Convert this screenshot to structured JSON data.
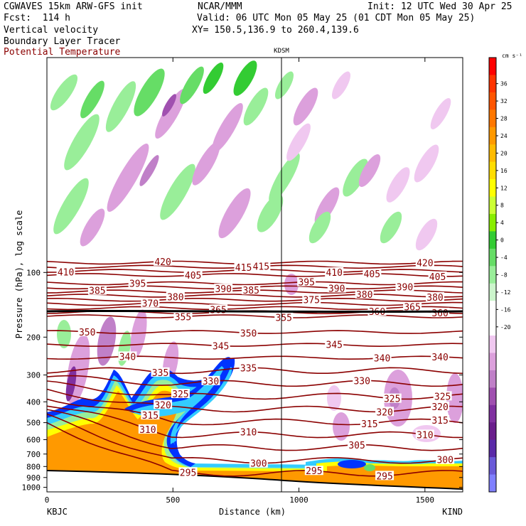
{
  "header": {
    "model": "CGWAVES 15km ARW-GFS init",
    "fcst": "Fcst:  114 h",
    "org": "NCAR/MMM",
    "init": "Init: 12 UTC Wed 30 Apr 25",
    "valid": "Valid: 06 UTC Mon 05 May 25 (01 CDT Mon 05 May 25)",
    "xy": "XY= 150.5,136.9 to 260.4,139.6",
    "field1": "Vertical velocity",
    "field2": "Boundary Layer Tracer",
    "field3": "Potential Temperature",
    "marker": "KDSM"
  },
  "colors": {
    "theta": "#8b0000",
    "text_red": "#8b0000"
  },
  "chart_data": {
    "type": "heatmap",
    "xlabel": "Distance (km)",
    "ylabel": "Pressure (hPa), log scale",
    "x_ticks": [
      0,
      500,
      1000,
      1500
    ],
    "xlim": [
      0,
      1650
    ],
    "y_ticks": [
      100,
      200,
      300,
      400,
      500,
      600,
      700,
      800,
      900,
      1000
    ],
    "ylim": [
      1050,
      10
    ],
    "left_station": "KBJC",
    "right_station": "KIND",
    "marker_station": "KDSM",
    "marker_x": 930,
    "colorbar": {
      "unit": "cm s⁻¹",
      "labels": [
        36,
        32,
        28,
        24,
        20,
        16,
        12,
        8,
        4,
        0,
        -4,
        -8,
        -12,
        -16,
        -20
      ],
      "colors": [
        "#ff0000",
        "#ff3300",
        "#ff5500",
        "#ff7700",
        "#ff9900",
        "#ffbb00",
        "#ffdd00",
        "#ffff00",
        "#ccff33",
        "#88ee00",
        "#33cc33",
        "#66dd66",
        "#99ee99",
        "#ccf5cc",
        "#ffffff",
        "#ffffff",
        "#f0c8f0",
        "#dca0dc",
        "#c080c8",
        "#a050b0",
        "#8030a0",
        "#6a1e8c",
        "#5a2aa8",
        "#6a5ad8",
        "#8080ff"
      ]
    },
    "theta_levels": [
      {
        "value": 420,
        "labels": [
          [
            460,
            420
          ],
          [
            1500,
            420
          ]
        ]
      },
      {
        "value": 415,
        "labels": [
          [
            780,
            415
          ],
          [
            850,
            415
          ]
        ]
      },
      {
        "value": 410,
        "labels": [
          [
            75,
            410
          ],
          [
            1140,
            410
          ]
        ]
      },
      {
        "value": 405,
        "labels": [
          [
            580,
            405
          ],
          [
            1290,
            405
          ],
          [
            1550,
            405
          ]
        ]
      },
      {
        "value": 395,
        "labels": [
          [
            360,
            395
          ],
          [
            1030,
            395
          ]
        ]
      },
      {
        "value": 390,
        "labels": [
          [
            700,
            390
          ],
          [
            1150,
            390
          ],
          [
            1420,
            390
          ]
        ]
      },
      {
        "value": 385,
        "labels": [
          [
            200,
            385
          ],
          [
            810,
            385
          ]
        ]
      },
      {
        "value": 380,
        "labels": [
          [
            510,
            380
          ],
          [
            1260,
            380
          ],
          [
            1540,
            380
          ]
        ]
      },
      {
        "value": 375,
        "labels": [
          [
            1050,
            375
          ]
        ]
      },
      {
        "value": 370,
        "labels": [
          [
            410,
            370
          ]
        ]
      },
      {
        "value": 365,
        "labels": [
          [
            680,
            365
          ],
          [
            1450,
            365
          ]
        ]
      },
      {
        "value": 360,
        "labels": [
          [
            1310,
            360
          ],
          [
            1560,
            360
          ]
        ]
      },
      {
        "value": 355,
        "labels": [
          [
            540,
            355
          ],
          [
            940,
            355
          ]
        ]
      },
      {
        "value": 350,
        "labels": [
          [
            160,
            350
          ],
          [
            800,
            350
          ]
        ]
      },
      {
        "value": 345,
        "labels": [
          [
            690,
            345
          ],
          [
            1140,
            345
          ]
        ]
      },
      {
        "value": 340,
        "labels": [
          [
            320,
            340
          ],
          [
            1330,
            340
          ],
          [
            1560,
            340
          ]
        ]
      },
      {
        "value": 335,
        "labels": [
          [
            450,
            335
          ],
          [
            800,
            335
          ]
        ]
      },
      {
        "value": 330,
        "labels": [
          [
            650,
            330
          ],
          [
            1250,
            330
          ]
        ]
      },
      {
        "value": 325,
        "labels": [
          [
            530,
            325
          ],
          [
            1370,
            325
          ],
          [
            1570,
            325
          ]
        ]
      },
      {
        "value": 320,
        "labels": [
          [
            460,
            320
          ],
          [
            1340,
            320
          ],
          [
            1560,
            320
          ]
        ]
      },
      {
        "value": 315,
        "labels": [
          [
            410,
            315
          ],
          [
            1280,
            315
          ],
          [
            1560,
            315
          ]
        ]
      },
      {
        "value": 310,
        "labels": [
          [
            400,
            310
          ],
          [
            800,
            310
          ],
          [
            1500,
            310
          ]
        ]
      },
      {
        "value": 305,
        "labels": [
          [
            1230,
            305
          ]
        ]
      },
      {
        "value": 300,
        "labels": [
          [
            840,
            300
          ],
          [
            1580,
            300
          ]
        ]
      },
      {
        "value": 295,
        "labels": [
          [
            560,
            295
          ],
          [
            1060,
            295
          ],
          [
            1340,
            295
          ]
        ]
      }
    ]
  }
}
